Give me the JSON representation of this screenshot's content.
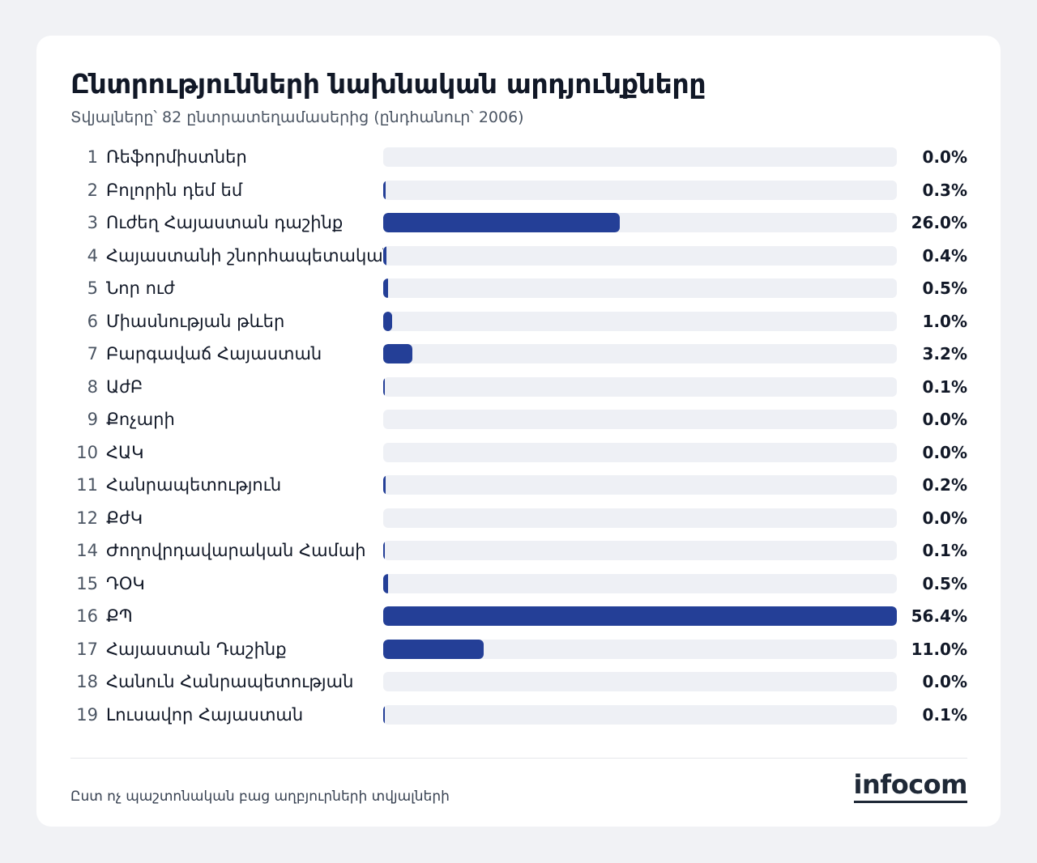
{
  "header": {
    "title": "Ընտրությունների նախնական արդյունքները",
    "subtitle": "Տվյալները՝ 82 ընտրատեղամասերից (ընդհանուր՝ 2006)"
  },
  "chart_data": {
    "type": "bar",
    "orientation": "horizontal",
    "title": "Ընտրությունների նախնական արդյունքները",
    "subtitle": "Տվյալները՝ 82 ընտրատեղամասերից (ընդհանուր՝ 2006)",
    "xlim": [
      0,
      56.4
    ],
    "unit": "%",
    "bar_color": "#243f97",
    "track_color": "#eef0f5",
    "rows": [
      {
        "num": "1",
        "label": "Ռեֆորմիստներ",
        "value": 0.0,
        "value_label": "0.0%"
      },
      {
        "num": "2",
        "label": "Բոլորին դեմ եմ",
        "value": 0.3,
        "value_label": "0.3%"
      },
      {
        "num": "3",
        "label": "Ուժեղ Հայաստան դաշինք",
        "value": 26.0,
        "value_label": "26.0%"
      },
      {
        "num": "4",
        "label": "Հայաստանի շնորհապետական",
        "value": 0.4,
        "value_label": "0.4%"
      },
      {
        "num": "5",
        "label": "Նոր ուժ",
        "value": 0.5,
        "value_label": "0.5%"
      },
      {
        "num": "6",
        "label": "Միասնության թևեր",
        "value": 1.0,
        "value_label": "1.0%"
      },
      {
        "num": "7",
        "label": "Բարգավաճ Հայաստան",
        "value": 3.2,
        "value_label": "3.2%"
      },
      {
        "num": "8",
        "label": "ԱժԲ",
        "value": 0.1,
        "value_label": "0.1%"
      },
      {
        "num": "9",
        "label": "Քոչարի",
        "value": 0.0,
        "value_label": "0.0%"
      },
      {
        "num": "10",
        "label": "ՀԱԿ",
        "value": 0.0,
        "value_label": "0.0%"
      },
      {
        "num": "11",
        "label": "Հանրապետություն",
        "value": 0.2,
        "value_label": "0.2%"
      },
      {
        "num": "12",
        "label": "ՔժԿ",
        "value": 0.0,
        "value_label": "0.0%"
      },
      {
        "num": "14",
        "label": "Ժողովրդավարական Համաի",
        "value": 0.1,
        "value_label": "0.1%"
      },
      {
        "num": "15",
        "label": "ԴՕԿ",
        "value": 0.5,
        "value_label": "0.5%"
      },
      {
        "num": "16",
        "label": "ՔՊ",
        "value": 56.4,
        "value_label": "56.4%"
      },
      {
        "num": "17",
        "label": "Հայաստան Դաշինք",
        "value": 11.0,
        "value_label": "11.0%"
      },
      {
        "num": "18",
        "label": "Հանուն Հանրապետության",
        "value": 0.0,
        "value_label": "0.0%"
      },
      {
        "num": "19",
        "label": "Լուսավոր Հայաստան",
        "value": 0.1,
        "value_label": "0.1%"
      }
    ]
  },
  "footer": {
    "source": "Ըստ ոչ պաշտոնական բաց աղբյուրների տվյալների",
    "logo": "infocom"
  }
}
